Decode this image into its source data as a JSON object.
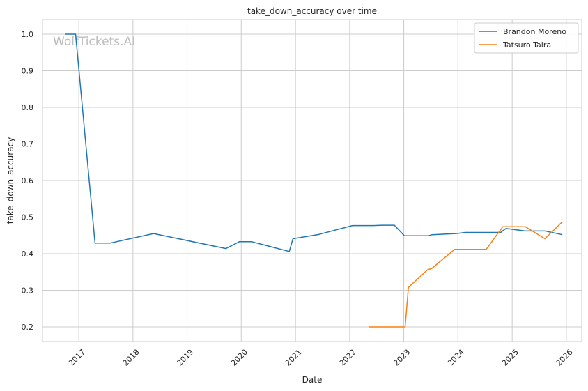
{
  "chart_data": {
    "type": "line",
    "title": "take_down_accuracy over time",
    "xlabel": "Date",
    "ylabel": "take_down_accuracy",
    "watermark": "WolfTickets.AI",
    "x_tick_labels": [
      "2017",
      "2018",
      "2019",
      "2020",
      "2021",
      "2022",
      "2023",
      "2024",
      "2025",
      "2026"
    ],
    "y_tick_labels": [
      "0.2",
      "0.3",
      "0.4",
      "0.5",
      "0.6",
      "0.7",
      "0.8",
      "0.9",
      "1.0"
    ],
    "y_ticks": [
      0.2,
      0.3,
      0.4,
      0.5,
      0.6,
      0.7,
      0.8,
      0.9,
      1.0
    ],
    "xlim": [
      "2016-05-01",
      "2026-04-15"
    ],
    "ylim": [
      0.16,
      1.04
    ],
    "grid": true,
    "legend_position": "top-right",
    "series": [
      {
        "name": "Brandon Moreno",
        "color": "#1f77b4",
        "points": [
          [
            "2016-10-01",
            1.0
          ],
          [
            "2016-12-10",
            1.0
          ],
          [
            "2017-04-20",
            0.429
          ],
          [
            "2017-07-30",
            0.429
          ],
          [
            "2018-05-20",
            0.455
          ],
          [
            "2019-09-20",
            0.414
          ],
          [
            "2019-12-20",
            0.433
          ],
          [
            "2020-03-10",
            0.433
          ],
          [
            "2020-11-20",
            0.406
          ],
          [
            "2020-12-15",
            0.441
          ],
          [
            "2021-06-10",
            0.453
          ],
          [
            "2022-01-20",
            0.477
          ],
          [
            "2022-06-10",
            0.477
          ],
          [
            "2022-08-10",
            0.478
          ],
          [
            "2022-10-30",
            0.478
          ],
          [
            "2023-01-05",
            0.449
          ],
          [
            "2023-06-15",
            0.449
          ],
          [
            "2023-07-10",
            0.452
          ],
          [
            "2023-12-20",
            0.455
          ],
          [
            "2024-02-20",
            0.458
          ],
          [
            "2024-10-15",
            0.458
          ],
          [
            "2024-11-20",
            0.469
          ],
          [
            "2025-03-30",
            0.462
          ],
          [
            "2025-08-10",
            0.462
          ],
          [
            "2025-12-05",
            0.452
          ]
        ]
      },
      {
        "name": "Tatsuro Taira",
        "color": "#ff7f0e",
        "points": [
          [
            "2022-05-10",
            0.2
          ],
          [
            "2022-11-10",
            0.2
          ],
          [
            "2023-01-10",
            0.2
          ],
          [
            "2023-02-01",
            0.308
          ],
          [
            "2023-06-10",
            0.356
          ],
          [
            "2023-07-10",
            0.36
          ],
          [
            "2023-12-10",
            0.412
          ],
          [
            "2024-07-10",
            0.412
          ],
          [
            "2024-10-30",
            0.474
          ],
          [
            "2025-03-30",
            0.474
          ],
          [
            "2025-08-10",
            0.441
          ],
          [
            "2025-12-05",
            0.487
          ]
        ]
      }
    ]
  }
}
